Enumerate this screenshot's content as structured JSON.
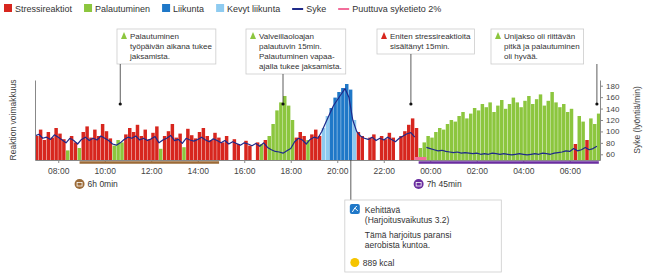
{
  "chart_data": {
    "type": "bar",
    "legend": "top-left",
    "y_label": "Reaktion voimakkuus",
    "y2_label": "Syke (lyöntiä/min)",
    "xlim": [
      420,
      1878
    ],
    "xticks": [
      {
        "value": 480,
        "label": "08:00"
      },
      {
        "value": 600,
        "label": "10:00"
      },
      {
        "value": 720,
        "label": "12:00"
      },
      {
        "value": 840,
        "label": "14:00"
      },
      {
        "value": 960,
        "label": "16:00"
      },
      {
        "value": 1080,
        "label": "18:00"
      },
      {
        "value": 1200,
        "label": "20:00"
      },
      {
        "value": 1320,
        "label": "22:00"
      },
      {
        "value": 1440,
        "label": "00:00"
      },
      {
        "value": 1560,
        "label": "02:00"
      },
      {
        "value": 1680,
        "label": "04:00"
      },
      {
        "value": 1800,
        "label": "06:00"
      }
    ],
    "ylim": [
      0,
      100
    ],
    "y2lim": [
      50,
      190
    ],
    "y2ticks": [
      60,
      80,
      100,
      120,
      140,
      160,
      180
    ],
    "series": [
      {
        "name": "Stressireaktiot",
        "type": "bar",
        "color": "#d7261e",
        "x": [
          420,
          430,
          440,
          450,
          460,
          470,
          480,
          490,
          510,
          520,
          540,
          550,
          560,
          570,
          580,
          590,
          600,
          610,
          650,
          660,
          670,
          680,
          690,
          700,
          710,
          720,
          730,
          750,
          760,
          770,
          780,
          790,
          810,
          820,
          830,
          840,
          850,
          860,
          870,
          880,
          890,
          900,
          910,
          930,
          940,
          960,
          970,
          990,
          1010,
          1090,
          1100,
          1110,
          1130,
          1140,
          1150,
          1250,
          1260,
          1280,
          1290,
          1310,
          1320,
          1330,
          1340,
          1360,
          1370,
          1380,
          1390,
          1400,
          1810,
          1840
        ],
        "values": [
          30,
          38,
          25,
          35,
          28,
          40,
          33,
          26,
          30,
          22,
          35,
          42,
          28,
          38,
          30,
          45,
          36,
          27,
          32,
          40,
          35,
          44,
          30,
          38,
          26,
          34,
          42,
          30,
          36,
          45,
          28,
          33,
          39,
          31,
          27,
          35,
          40,
          30,
          25,
          34,
          28,
          22,
          30,
          26,
          20,
          24,
          18,
          22,
          25,
          28,
          35,
          30,
          32,
          38,
          30,
          35,
          30,
          28,
          32,
          30,
          26,
          34,
          28,
          30,
          36,
          44,
          52,
          40,
          20,
          25
        ]
      },
      {
        "name": "Palautuminen",
        "type": "bar",
        "color": "#8cc63e",
        "x": [
          500,
          530,
          620,
          630,
          640,
          740,
          800,
          1000,
          1020,
          1030,
          1040,
          1050,
          1060,
          1070,
          1080,
          1120,
          1410,
          1420,
          1430,
          1440,
          1450,
          1460,
          1470,
          1480,
          1490,
          1500,
          1510,
          1520,
          1530,
          1540,
          1550,
          1560,
          1570,
          1580,
          1590,
          1600,
          1610,
          1620,
          1630,
          1640,
          1650,
          1660,
          1670,
          1680,
          1690,
          1700,
          1710,
          1720,
          1730,
          1740,
          1750,
          1760,
          1770,
          1780,
          1790,
          1800,
          1820,
          1830,
          1850,
          1860,
          1870
        ],
        "values": [
          12,
          15,
          18,
          25,
          22,
          14,
          16,
          20,
          30,
          45,
          62,
          72,
          80,
          68,
          50,
          25,
          15,
          22,
          30,
          28,
          35,
          40,
          38,
          45,
          50,
          48,
          55,
          60,
          52,
          58,
          65,
          62,
          70,
          66,
          72,
          60,
          68,
          75,
          64,
          70,
          78,
          72,
          66,
          74,
          80,
          70,
          76,
          82,
          68,
          74,
          85,
          72,
          66,
          70,
          60,
          64,
          55,
          48,
          52,
          45,
          58
        ]
      },
      {
        "name": "Liikunta",
        "type": "bar",
        "color": "#1f78c8",
        "x": [
          1180,
          1190,
          1200,
          1210,
          1220,
          1230
        ],
        "values": [
          65,
          78,
          85,
          90,
          95,
          88
        ]
      },
      {
        "name": "Kevyt liikunta",
        "type": "bar",
        "color": "#8ecbf0",
        "x": [
          1160,
          1170,
          1240
        ],
        "values": [
          40,
          55,
          50
        ]
      },
      {
        "name": "Syke",
        "type": "line",
        "axis": "y2",
        "color": "#1f2a8a",
        "x": [
          420,
          430,
          440,
          450,
          460,
          470,
          480,
          490,
          500,
          510,
          520,
          530,
          540,
          550,
          560,
          570,
          580,
          590,
          600,
          610,
          620,
          630,
          640,
          650,
          660,
          670,
          680,
          690,
          700,
          710,
          720,
          730,
          740,
          750,
          760,
          770,
          780,
          790,
          800,
          810,
          820,
          830,
          840,
          850,
          860,
          870,
          880,
          890,
          900,
          910,
          920,
          930,
          940,
          950,
          960,
          970,
          980,
          990,
          1000,
          1010,
          1020,
          1030,
          1040,
          1050,
          1060,
          1070,
          1080,
          1090,
          1100,
          1110,
          1120,
          1130,
          1140,
          1150,
          1160,
          1170,
          1180,
          1190,
          1200,
          1210,
          1220,
          1230,
          1240,
          1250,
          1260,
          1270,
          1280,
          1290,
          1300,
          1310,
          1320,
          1330,
          1340,
          1350,
          1360,
          1370,
          1380,
          1390,
          1400,
          1410,
          1420,
          1430,
          1440,
          1450,
          1460,
          1470,
          1480,
          1490,
          1500,
          1510,
          1520,
          1530,
          1540,
          1550,
          1560,
          1570,
          1580,
          1590,
          1600,
          1610,
          1620,
          1630,
          1640,
          1650,
          1660,
          1670,
          1680,
          1690,
          1700,
          1710,
          1720,
          1730,
          1740,
          1750,
          1760,
          1770,
          1780,
          1790,
          1800,
          1810,
          1820,
          1830,
          1840,
          1850,
          1860,
          1870
        ],
        "values": [
          92,
          95,
          88,
          90,
          86,
          94,
          90,
          85,
          80,
          88,
          84,
          78,
          86,
          90,
          84,
          88,
          85,
          92,
          88,
          84,
          78,
          76,
          80,
          86,
          90,
          88,
          92,
          85,
          88,
          84,
          87,
          91,
          80,
          85,
          88,
          93,
          84,
          86,
          79,
          88,
          85,
          83,
          86,
          90,
          85,
          82,
          87,
          84,
          80,
          84,
          78,
          82,
          79,
          76,
          80,
          78,
          75,
          79,
          74,
          80,
          72,
          68,
          65,
          64,
          62,
          66,
          70,
          82,
          88,
          85,
          78,
          86,
          90,
          88,
          100,
          115,
          130,
          145,
          155,
          165,
          175,
          160,
          120,
          100,
          92,
          88,
          86,
          90,
          84,
          88,
          85,
          90,
          86,
          82,
          88,
          92,
          96,
          98,
          90,
          null,
          null,
          72,
          70,
          68,
          66,
          67,
          65,
          64,
          63,
          64,
          62,
          63,
          62,
          61,
          62,
          60,
          61,
          60,
          62,
          61,
          60,
          61,
          60,
          59,
          60,
          61,
          60,
          59,
          60,
          61,
          60,
          62,
          61,
          60,
          62,
          63,
          64,
          66,
          65,
          70,
          66,
          68,
          72,
          68,
          70,
          74
        ]
      }
    ],
    "missing_data": {
      "name": "Puuttuva syketieto 2%",
      "color": "#f26d9a",
      "ranges": [
        [
          1400,
          1430
        ]
      ]
    },
    "periods": [
      {
        "label": "6h 0min",
        "start": 535,
        "end": 895,
        "color": "#9b6a36"
      },
      {
        "label": "7h 45min",
        "start": 1410,
        "end": 1875,
        "color": "#6a2d9f"
      }
    ],
    "annotations": [
      {
        "x": 640,
        "color": "#8cc63e",
        "lines": [
          "Palautuminen",
          "työpäivän aikana tukee",
          "jaksamista."
        ]
      },
      {
        "x": 1060,
        "color": "#8cc63e",
        "lines": [
          "Valveillaoloajan",
          "palautuvin 15min.",
          "Palautuminen vapaa-",
          "ajalla tukee jaksamista."
        ]
      },
      {
        "x": 1390,
        "color": "#d7261e",
        "lines": [
          "Eniten stressireaktioita",
          "sisältänyt 15min."
        ]
      },
      {
        "x": 1870,
        "color": "#8cc63e",
        "lines": [
          "Unijakso oli riittävän",
          "pitkä ja palautuminen",
          "oli hyvää."
        ]
      }
    ],
    "exercise": {
      "x": 1235,
      "color": "#1f78c8",
      "title": "Kehittävä",
      "lines": [
        "(Harjoitusvaikutus 3.2)",
        "Tämä harjoitus paransi",
        "aerobista kuntoa."
      ],
      "energy": "889 kcal"
    }
  }
}
